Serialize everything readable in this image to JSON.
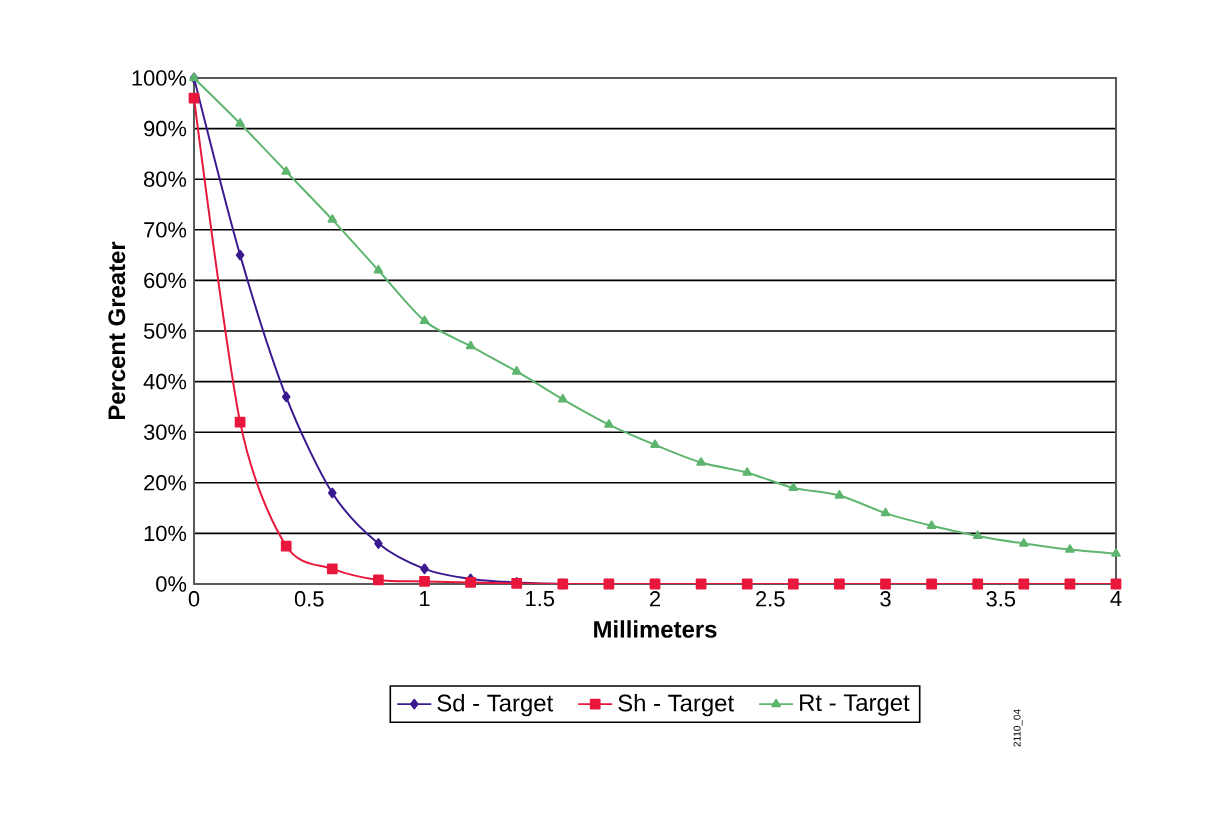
{
  "chart_data": {
    "type": "line",
    "xlabel": "Millimeters",
    "ylabel": "Percent Greater",
    "x": [
      0,
      0.2,
      0.4,
      0.6,
      0.8,
      1,
      1.2,
      1.4,
      1.6,
      1.8,
      2,
      2.2,
      2.4,
      2.6,
      2.8,
      3,
      3.2,
      3.4,
      3.6,
      3.8,
      4
    ],
    "series": [
      {
        "name": "Sd - Target",
        "color": "#3b1a8f",
        "marker": "diamond",
        "values": [
          100,
          65,
          37,
          18,
          8,
          3,
          1,
          0.3,
          0,
          null,
          null,
          null,
          null,
          null,
          null,
          null,
          null,
          null,
          null,
          null,
          null
        ]
      },
      {
        "name": "Sh - Target",
        "color": "#e8173c",
        "marker": "square",
        "values": [
          96,
          32,
          7.5,
          3,
          0.8,
          0.5,
          0.3,
          0.1,
          0,
          0,
          0,
          0,
          0,
          0,
          0,
          0,
          0,
          0,
          0,
          0,
          0
        ]
      },
      {
        "name": "Rt - Target",
        "color": "#5db56e",
        "marker": "triangle",
        "values": [
          100,
          91,
          81.5,
          72,
          62,
          52,
          47,
          42,
          36.5,
          31.5,
          27.5,
          24,
          22,
          19,
          17.5,
          14,
          11.5,
          9.5,
          8,
          6.8,
          6
        ]
      }
    ],
    "xlim": [
      0,
      4
    ],
    "xticks": [
      0,
      0.5,
      1,
      1.5,
      2,
      2.5,
      3,
      3.5,
      4
    ],
    "ylim": [
      0,
      100
    ],
    "yticks": [
      {
        "value": 0,
        "label": "0%"
      },
      {
        "value": 10,
        "label": "10%"
      },
      {
        "value": 20,
        "label": "20%"
      },
      {
        "value": 30,
        "label": "30%"
      },
      {
        "value": 40,
        "label": "40%"
      },
      {
        "value": 50,
        "label": "50%"
      },
      {
        "value": 60,
        "label": "60%"
      },
      {
        "value": 70,
        "label": "70%"
      },
      {
        "value": 80,
        "label": "80%"
      },
      {
        "value": 90,
        "label": "90%"
      },
      {
        "value": 100,
        "label": "100%"
      }
    ],
    "grid": "y",
    "legend": "bottom",
    "line_style": "solid",
    "annotations": [
      "2110_04"
    ]
  }
}
